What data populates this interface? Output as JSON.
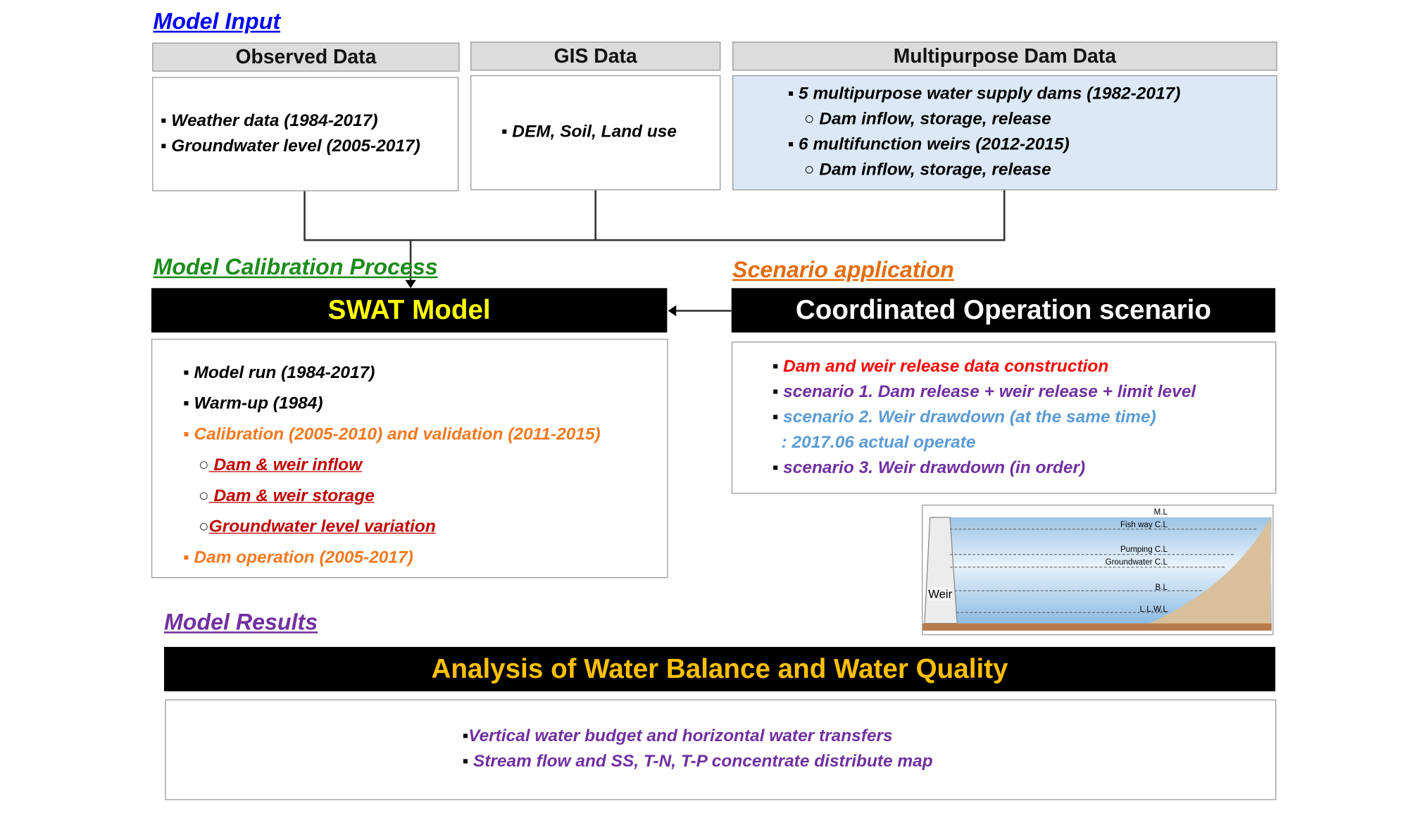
{
  "input": {
    "title": "Model Input",
    "observed": {
      "header": "Observed Data",
      "items": [
        "Weather data (1984-2017)",
        "Groundwater  level (2005-2017)"
      ]
    },
    "gis": {
      "header": "GIS Data",
      "items": [
        "DEM, Soil,  Land use"
      ]
    },
    "dam": {
      "header": "Multipurpose Dam Data",
      "items": [
        "5 multipurpose  water supply dams (1982-2017)",
        "Dam inflow, storage, release",
        "6 multifunction weirs (2012-2015)",
        "Dam inflow, storage, release"
      ]
    }
  },
  "calibration": {
    "title": "Model Calibration Process",
    "box_title": "SWAT Model",
    "items": [
      "Model run (1984-2017)",
      "Warm-up (1984)",
      "Calibration (2005-2010)  and validation (2011-2015)",
      " Dam & weir inflow",
      " Dam & weir storage",
      "Groundwater  level variation",
      "Dam operation (2005-2017)"
    ]
  },
  "scenario": {
    "title": "Scenario application",
    "box_title": "Coordinated Operation scenario",
    "items": [
      "Dam and weir release data construction",
      "scenario 1. Dam  release + weir release + limit level",
      "scenario 2. Weir drawdown  (at the same time)",
      ": 2017.06 actual operate",
      "scenario 3. Weir drawdown  (in order)"
    ]
  },
  "weir_diagram": {
    "weir_label": "Weir",
    "levels": [
      "M.L",
      "Fish way C.L",
      "Pumping C.L",
      "Groundwater C.L",
      "B.L",
      "L.L.W.L"
    ]
  },
  "results": {
    "title": "Model Results",
    "box_title": "Analysis of Water Balance and Water Quality",
    "items": [
      "Vertical water budget  and  horizontal  water transfers",
      "Stream flow and SS, T-N, T-P concentrate distribute map"
    ]
  },
  "colors": {
    "input_title": "#0000ff",
    "calibration_title": "#1a8c1a",
    "scenario_title": "#e46c0a",
    "results_title": "#7030a0",
    "swat_text": "#ffff00",
    "analysis_text": "#ffc000",
    "dam_box_bg": "#dce8f5"
  }
}
